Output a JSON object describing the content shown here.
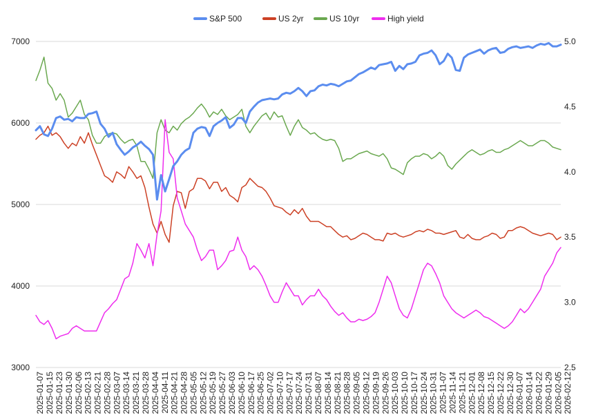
{
  "chart_data": {
    "type": "line",
    "title": "",
    "xlabel": "",
    "ylabel": "",
    "y2label": "",
    "grid": true,
    "legend_position": "top",
    "left_axis": {
      "ylim": [
        3000,
        7000
      ],
      "ticks": [
        3000,
        4000,
        5000,
        6000,
        7000
      ]
    },
    "right_axis": {
      "ylim": [
        2.5,
        5.0
      ],
      "ticks": [
        "2.5",
        "3.0",
        "3.5",
        "4.0",
        "4.5",
        "5.0"
      ]
    },
    "x_tick_labels": [
      "2025-01-07",
      "2025-01-15",
      "2025-01-23",
      "2025-01-30",
      "2025-02-06",
      "2025-02-13",
      "2025-02-21",
      "2025-02-28",
      "2025-03-07",
      "2025-03-14",
      "2025-03-21",
      "2025-03-28",
      "2025-04-04",
      "2025-04-11",
      "2025-04-21",
      "2025-04-28",
      "2025-05-05",
      "2025-05-12",
      "2025-05-19",
      "2025-05-27",
      "2025-06-03",
      "2025-06-10",
      "2025-06-17",
      "2025-06-25",
      "2025-07-02",
      "2025-07-10",
      "2025-07-17",
      "2025-07-24",
      "2025-07-31",
      "2025-08-07",
      "2025-08-14",
      "2025-08-21",
      "2025-08-28",
      "2025-09-05",
      "2025-09-12",
      "2025-09-19",
      "2025-09-26",
      "2025-10-03",
      "2025-10-10",
      "2025-10-17",
      "2025-10-24",
      "2025-10-31",
      "2025-11-07",
      "2025-11-14",
      "2025-11-21",
      "2025-12-01",
      "2025-12-08",
      "2025-12-15",
      "2025-12-22",
      "2025-12-30",
      "2026-01-07",
      "2026-01-14",
      "2026-01-22",
      "2026-01-29",
      "2026-02-05",
      "2026-02-12"
    ],
    "series": [
      {
        "name": "S&P 500",
        "axis": "left",
        "color": "#5b8def",
        "values": [
          5910,
          5960,
          5860,
          5840,
          5930,
          6060,
          6080,
          6040,
          6050,
          6020,
          6070,
          6060,
          6060,
          6110,
          6120,
          6140,
          5990,
          5930,
          5830,
          5880,
          5740,
          5670,
          5610,
          5650,
          5700,
          5730,
          5770,
          5720,
          5680,
          5610,
          5060,
          5360,
          5160,
          5310,
          5470,
          5530,
          5610,
          5660,
          5690,
          5880,
          5930,
          5950,
          5940,
          5840,
          5960,
          6000,
          6030,
          6070,
          5940,
          5980,
          6060,
          6060,
          6000,
          6140,
          6200,
          6250,
          6280,
          6290,
          6300,
          6290,
          6300,
          6350,
          6370,
          6360,
          6390,
          6430,
          6390,
          6330,
          6390,
          6400,
          6450,
          6470,
          6460,
          6480,
          6470,
          6450,
          6480,
          6510,
          6520,
          6560,
          6600,
          6620,
          6650,
          6680,
          6660,
          6710,
          6720,
          6730,
          6750,
          6640,
          6700,
          6660,
          6720,
          6730,
          6750,
          6830,
          6850,
          6860,
          6890,
          6830,
          6720,
          6760,
          6850,
          6800,
          6650,
          6640,
          6800,
          6840,
          6860,
          6880,
          6900,
          6850,
          6890,
          6910,
          6920,
          6860,
          6870,
          6910,
          6930,
          6940,
          6920,
          6930,
          6940,
          6920,
          6950,
          6970,
          6960,
          6980,
          6940,
          6940,
          6960
        ]
      },
      {
        "name": "US 2yr",
        "axis": "right",
        "color": "#cc4125",
        "values": [
          4.25,
          4.28,
          4.3,
          4.35,
          4.28,
          4.3,
          4.27,
          4.22,
          4.18,
          4.22,
          4.2,
          4.27,
          4.22,
          4.3,
          4.21,
          4.13,
          4.05,
          3.97,
          3.95,
          3.92,
          4.0,
          3.98,
          3.95,
          4.04,
          4.0,
          3.95,
          3.97,
          3.88,
          3.73,
          3.6,
          3.53,
          3.62,
          3.52,
          3.46,
          3.74,
          3.85,
          3.84,
          3.72,
          3.85,
          3.87,
          3.95,
          3.95,
          3.93,
          3.87,
          3.92,
          3.92,
          3.85,
          3.88,
          3.82,
          3.8,
          3.77,
          3.88,
          3.9,
          3.95,
          3.92,
          3.89,
          3.88,
          3.85,
          3.8,
          3.74,
          3.73,
          3.72,
          3.69,
          3.67,
          3.71,
          3.68,
          3.72,
          3.66,
          3.62,
          3.62,
          3.62,
          3.6,
          3.58,
          3.58,
          3.55,
          3.52,
          3.5,
          3.51,
          3.48,
          3.49,
          3.51,
          3.53,
          3.52,
          3.5,
          3.48,
          3.48,
          3.47,
          3.53,
          3.52,
          3.53,
          3.51,
          3.5,
          3.51,
          3.52,
          3.54,
          3.55,
          3.54,
          3.56,
          3.55,
          3.53,
          3.53,
          3.52,
          3.53,
          3.54,
          3.55,
          3.5,
          3.49,
          3.52,
          3.49,
          3.48,
          3.48,
          3.5,
          3.51,
          3.53,
          3.52,
          3.49,
          3.5,
          3.55,
          3.55,
          3.57,
          3.58,
          3.57,
          3.55,
          3.53,
          3.52,
          3.51,
          3.52,
          3.53,
          3.52,
          3.48,
          3.5
        ]
      },
      {
        "name": "US 10yr",
        "axis": "right",
        "color": "#6aa84f",
        "values": [
          4.7,
          4.78,
          4.88,
          4.68,
          4.64,
          4.55,
          4.6,
          4.55,
          4.42,
          4.45,
          4.5,
          4.55,
          4.44,
          4.4,
          4.28,
          4.22,
          4.22,
          4.27,
          4.29,
          4.3,
          4.29,
          4.25,
          4.22,
          4.24,
          4.25,
          4.2,
          4.08,
          4.08,
          4.02,
          3.95,
          4.3,
          4.4,
          4.32,
          4.3,
          4.35,
          4.32,
          4.37,
          4.4,
          4.42,
          4.45,
          4.49,
          4.52,
          4.48,
          4.42,
          4.46,
          4.44,
          4.48,
          4.43,
          4.4,
          4.42,
          4.44,
          4.48,
          4.35,
          4.3,
          4.35,
          4.39,
          4.43,
          4.45,
          4.4,
          4.46,
          4.42,
          4.43,
          4.35,
          4.28,
          4.35,
          4.4,
          4.34,
          4.32,
          4.29,
          4.3,
          4.27,
          4.25,
          4.24,
          4.25,
          4.24,
          4.18,
          4.08,
          4.1,
          4.1,
          4.12,
          4.14,
          4.15,
          4.16,
          4.14,
          4.13,
          4.12,
          4.14,
          4.1,
          4.03,
          4.02,
          4.0,
          3.98,
          4.07,
          4.1,
          4.12,
          4.12,
          4.14,
          4.13,
          4.1,
          4.12,
          4.15,
          4.12,
          4.05,
          4.02,
          4.06,
          4.09,
          4.12,
          4.15,
          4.17,
          4.15,
          4.13,
          4.14,
          4.16,
          4.17,
          4.15,
          4.15,
          4.17,
          4.18,
          4.2,
          4.22,
          4.24,
          4.22,
          4.2,
          4.2,
          4.22,
          4.24,
          4.24,
          4.22,
          4.19,
          4.18,
          4.17
        ]
      },
      {
        "name": "High yield",
        "axis": "right",
        "color": "#ee2dee",
        "values": [
          2.9,
          2.85,
          2.83,
          2.86,
          2.8,
          2.72,
          2.74,
          2.75,
          2.76,
          2.8,
          2.82,
          2.8,
          2.78,
          2.78,
          2.78,
          2.78,
          2.85,
          2.92,
          2.95,
          2.99,
          3.02,
          3.1,
          3.18,
          3.2,
          3.3,
          3.45,
          3.4,
          3.34,
          3.45,
          3.28,
          3.52,
          3.7,
          4.4,
          4.15,
          4.1,
          3.8,
          3.7,
          3.6,
          3.55,
          3.5,
          3.4,
          3.32,
          3.35,
          3.4,
          3.4,
          3.25,
          3.28,
          3.32,
          3.39,
          3.4,
          3.5,
          3.4,
          3.35,
          3.25,
          3.28,
          3.25,
          3.2,
          3.13,
          3.05,
          3.0,
          3.0,
          3.08,
          3.15,
          3.1,
          3.05,
          3.05,
          2.98,
          3.02,
          3.05,
          3.05,
          3.1,
          3.05,
          3.02,
          2.97,
          2.93,
          2.9,
          2.92,
          2.88,
          2.85,
          2.85,
          2.87,
          2.86,
          2.87,
          2.89,
          2.92,
          3.0,
          3.1,
          3.2,
          3.15,
          3.05,
          2.95,
          2.9,
          2.88,
          2.95,
          3.05,
          3.15,
          3.25,
          3.3,
          3.28,
          3.22,
          3.15,
          3.05,
          3.0,
          2.95,
          2.92,
          2.9,
          2.88,
          2.9,
          2.92,
          2.94,
          2.92,
          2.89,
          2.88,
          2.86,
          2.84,
          2.82,
          2.8,
          2.82,
          2.85,
          2.9,
          2.95,
          2.92,
          2.95,
          3.0,
          3.05,
          3.1,
          3.2,
          3.25,
          3.3,
          3.38,
          3.42
        ]
      }
    ]
  }
}
